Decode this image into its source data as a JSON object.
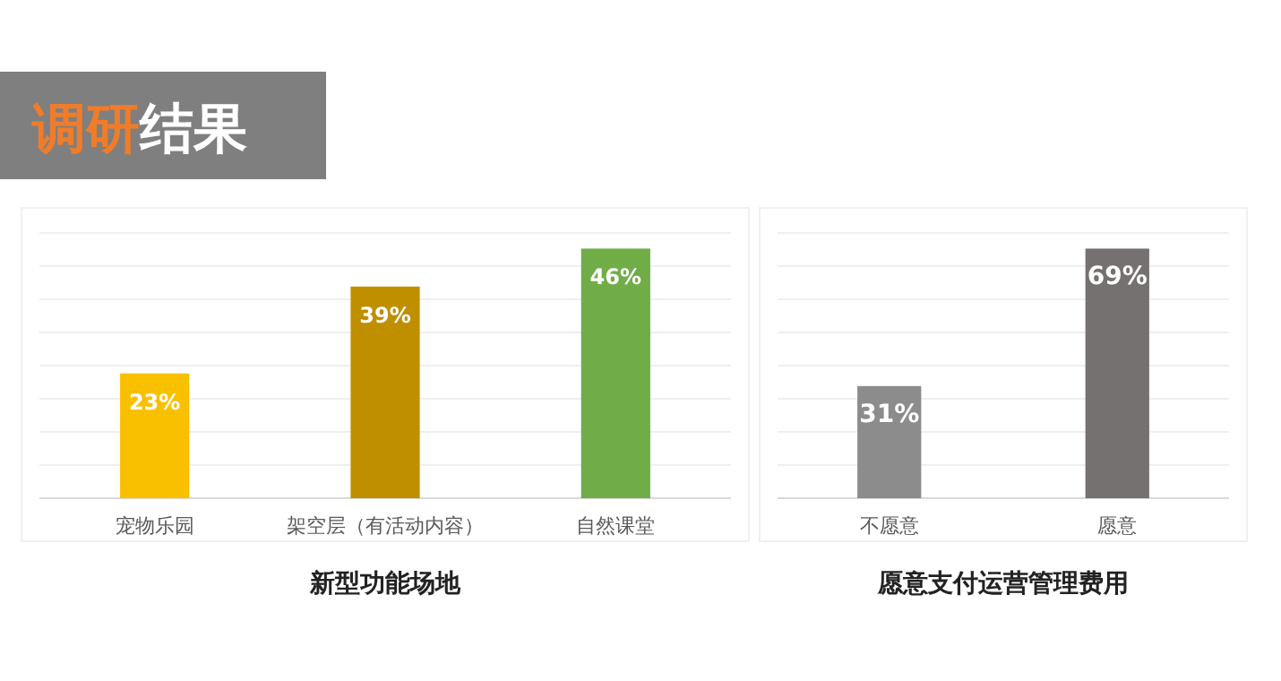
{
  "chart_data": [
    {
      "type": "bar",
      "title": "新型功能场地",
      "annotations": [
        "调研结果"
      ],
      "categories": [
        "宠物乐园",
        "架空层（有活动内容）",
        "自然课堂"
      ],
      "values": [
        23,
        39,
        46
      ],
      "colors": [
        "#f9c000",
        "#bf8f00",
        "#70ad47"
      ],
      "value_labels": [
        "23%",
        "39%",
        "46%"
      ],
      "grid": true
    },
    {
      "type": "bar",
      "title": "愿意支付运营管理费用",
      "categories": [
        "不愿意",
        "愿意"
      ],
      "values": [
        31,
        69
      ],
      "colors": [
        "#8c8c8c",
        "#767171"
      ],
      "value_labels": [
        "31%",
        "69%"
      ],
      "grid": true
    }
  ]
}
